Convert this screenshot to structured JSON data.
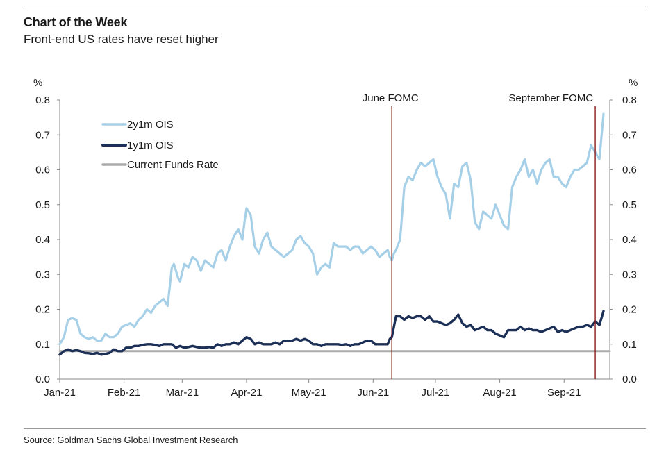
{
  "header": {
    "title": "Chart of the Week",
    "subtitle": "Front-end US rates have reset higher"
  },
  "footer": {
    "source": "Source: Goldman Sachs Global Investment Research"
  },
  "chart_data": {
    "type": "line",
    "title": "Chart of the Week",
    "subtitle": "Front-end US rates have reset higher",
    "ylabel_left": "%",
    "ylabel_right": "%",
    "ylim": [
      0,
      0.8
    ],
    "yticks": [
      "0.0",
      "0.1",
      "0.2",
      "0.3",
      "0.4",
      "0.5",
      "0.6",
      "0.7",
      "0.8"
    ],
    "x_start": "2021-01-01",
    "x_end": "2021-09-30",
    "xticks": [
      {
        "label": "Jan-21",
        "day": 0
      },
      {
        "label": "Feb-21",
        "day": 31
      },
      {
        "label": "Mar-21",
        "day": 59
      },
      {
        "label": "Apr-21",
        "day": 90
      },
      {
        "label": "May-21",
        "day": 120
      },
      {
        "label": "Jun-21",
        "day": 151
      },
      {
        "label": "Jul-21",
        "day": 181
      },
      {
        "label": "Aug-21",
        "day": 212
      },
      {
        "label": "Sep-21",
        "day": 243
      }
    ],
    "legend_position": "top-left",
    "series": [
      {
        "name": "2y1m OIS",
        "color": "#a6cfe8",
        "x": [
          0,
          2,
          4,
          6,
          8,
          10,
          12,
          14,
          16,
          18,
          20,
          22,
          24,
          26,
          28,
          30,
          32,
          34,
          36,
          38,
          40,
          42,
          44,
          46,
          48,
          50,
          52,
          54,
          55,
          56,
          57,
          58,
          60,
          62,
          64,
          66,
          68,
          70,
          72,
          74,
          76,
          78,
          80,
          82,
          84,
          86,
          88,
          89,
          90,
          91,
          92,
          94,
          96,
          98,
          100,
          102,
          104,
          106,
          108,
          110,
          112,
          114,
          116,
          118,
          120,
          122,
          124,
          126,
          128,
          130,
          132,
          134,
          136,
          138,
          140,
          142,
          144,
          146,
          148,
          150,
          152,
          154,
          156,
          158,
          159,
          160,
          161,
          162,
          164,
          166,
          168,
          170,
          172,
          174,
          176,
          178,
          180,
          182,
          184,
          186,
          188,
          190,
          192,
          194,
          196,
          198,
          200,
          202,
          204,
          206,
          208,
          210,
          212,
          214,
          216,
          218,
          220,
          222,
          224,
          226,
          228,
          230,
          232,
          234,
          236,
          238,
          240,
          242,
          244,
          246,
          248,
          250,
          252,
          254,
          256,
          258,
          260,
          262
        ],
        "values": [
          0.1,
          0.12,
          0.17,
          0.175,
          0.17,
          0.13,
          0.12,
          0.115,
          0.12,
          0.11,
          0.11,
          0.13,
          0.12,
          0.12,
          0.13,
          0.15,
          0.155,
          0.16,
          0.15,
          0.17,
          0.18,
          0.2,
          0.19,
          0.21,
          0.22,
          0.23,
          0.21,
          0.32,
          0.33,
          0.31,
          0.29,
          0.28,
          0.33,
          0.32,
          0.35,
          0.34,
          0.31,
          0.34,
          0.33,
          0.32,
          0.36,
          0.37,
          0.34,
          0.38,
          0.41,
          0.43,
          0.4,
          0.45,
          0.49,
          0.48,
          0.47,
          0.38,
          0.36,
          0.4,
          0.42,
          0.38,
          0.37,
          0.36,
          0.35,
          0.36,
          0.37,
          0.4,
          0.41,
          0.39,
          0.38,
          0.36,
          0.3,
          0.32,
          0.33,
          0.32,
          0.39,
          0.38,
          0.38,
          0.38,
          0.37,
          0.38,
          0.38,
          0.36,
          0.37,
          0.38,
          0.37,
          0.35,
          0.36,
          0.37,
          0.35,
          0.34,
          0.36,
          0.37,
          0.4,
          0.55,
          0.58,
          0.57,
          0.6,
          0.62,
          0.61,
          0.62,
          0.63,
          0.58,
          0.55,
          0.53,
          0.46,
          0.56,
          0.55,
          0.61,
          0.62,
          0.57,
          0.45,
          0.43,
          0.48,
          0.47,
          0.46,
          0.5,
          0.47,
          0.44,
          0.43,
          0.55,
          0.58,
          0.6,
          0.63,
          0.58,
          0.6,
          0.56,
          0.6,
          0.62,
          0.63,
          0.58,
          0.58,
          0.56,
          0.55,
          0.58,
          0.6,
          0.6,
          0.61,
          0.62,
          0.67,
          0.65,
          0.63,
          0.76
        ]
      },
      {
        "name": "1y1m OIS",
        "color": "#1c2f56",
        "x": [
          0,
          2,
          4,
          6,
          8,
          10,
          12,
          14,
          16,
          18,
          20,
          22,
          24,
          26,
          28,
          30,
          32,
          34,
          36,
          38,
          40,
          42,
          44,
          46,
          48,
          50,
          52,
          54,
          56,
          58,
          60,
          62,
          64,
          66,
          68,
          70,
          72,
          74,
          76,
          78,
          80,
          82,
          84,
          86,
          88,
          90,
          92,
          94,
          96,
          98,
          100,
          102,
          104,
          106,
          108,
          110,
          112,
          114,
          116,
          118,
          120,
          122,
          124,
          126,
          128,
          130,
          132,
          134,
          136,
          138,
          140,
          142,
          144,
          146,
          148,
          150,
          152,
          154,
          156,
          158,
          159,
          160,
          162,
          164,
          166,
          168,
          170,
          172,
          174,
          176,
          178,
          180,
          182,
          184,
          186,
          188,
          190,
          192,
          194,
          196,
          198,
          200,
          202,
          204,
          206,
          208,
          210,
          212,
          214,
          216,
          218,
          220,
          222,
          224,
          226,
          228,
          230,
          232,
          234,
          236,
          238,
          240,
          242,
          244,
          246,
          248,
          250,
          252,
          254,
          256,
          258,
          260,
          262
        ],
        "values": [
          0.07,
          0.08,
          0.085,
          0.08,
          0.083,
          0.08,
          0.075,
          0.074,
          0.072,
          0.075,
          0.07,
          0.072,
          0.075,
          0.085,
          0.08,
          0.08,
          0.09,
          0.09,
          0.095,
          0.095,
          0.098,
          0.1,
          0.1,
          0.098,
          0.095,
          0.1,
          0.1,
          0.1,
          0.09,
          0.095,
          0.09,
          0.092,
          0.095,
          0.092,
          0.09,
          0.09,
          0.092,
          0.09,
          0.1,
          0.095,
          0.1,
          0.1,
          0.105,
          0.1,
          0.11,
          0.12,
          0.115,
          0.1,
          0.105,
          0.1,
          0.1,
          0.1,
          0.105,
          0.1,
          0.11,
          0.11,
          0.11,
          0.115,
          0.11,
          0.115,
          0.11,
          0.1,
          0.1,
          0.095,
          0.1,
          0.1,
          0.1,
          0.1,
          0.098,
          0.1,
          0.095,
          0.1,
          0.1,
          0.105,
          0.11,
          0.11,
          0.1,
          0.1,
          0.1,
          0.1,
          0.115,
          0.12,
          0.18,
          0.18,
          0.17,
          0.18,
          0.175,
          0.18,
          0.18,
          0.17,
          0.18,
          0.165,
          0.165,
          0.16,
          0.155,
          0.16,
          0.17,
          0.185,
          0.16,
          0.15,
          0.155,
          0.14,
          0.145,
          0.15,
          0.14,
          0.14,
          0.13,
          0.125,
          0.12,
          0.14,
          0.14,
          0.14,
          0.15,
          0.14,
          0.145,
          0.14,
          0.14,
          0.135,
          0.14,
          0.145,
          0.15,
          0.135,
          0.14,
          0.135,
          0.14,
          0.145,
          0.15,
          0.15,
          0.155,
          0.15,
          0.165,
          0.155,
          0.195
        ]
      },
      {
        "name": "Current Funds Rate",
        "color": "#ababab",
        "x": [
          0,
          265
        ],
        "values": [
          0.08,
          0.08
        ]
      }
    ],
    "annotations": [
      {
        "label": "June FOMC",
        "day": 160,
        "color": "#8b1a1a"
      },
      {
        "label": "September FOMC",
        "day": 258,
        "color": "#8b1a1a"
      }
    ]
  }
}
